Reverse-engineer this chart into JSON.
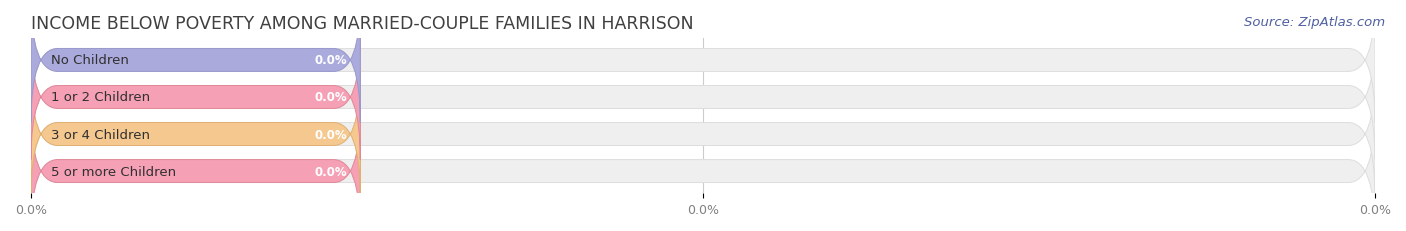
{
  "title": "INCOME BELOW POVERTY AMONG MARRIED-COUPLE FAMILIES IN HARRISON",
  "source": "Source: ZipAtlas.com",
  "categories": [
    "No Children",
    "1 or 2 Children",
    "3 or 4 Children",
    "5 or more Children"
  ],
  "values": [
    0.0,
    0.0,
    0.0,
    0.0
  ],
  "bar_colors": [
    "#aaaadd",
    "#f5a0b5",
    "#f5c890",
    "#f5a0b5"
  ],
  "bar_edge_colors": [
    "#9898cc",
    "#e08898",
    "#e0b070",
    "#e08898"
  ],
  "background_color": "#ffffff",
  "bar_bg_color": "#efefef",
  "bar_bg_edge_color": "#dddddd",
  "xlim": [
    0,
    100
  ],
  "ylim": [
    -0.6,
    3.6
  ],
  "title_fontsize": 12.5,
  "source_fontsize": 9.5,
  "label_fontsize": 9.5,
  "value_fontsize": 8.5,
  "tick_fontsize": 9,
  "bar_height": 0.62,
  "title_color": "#404040",
  "tick_label_color": "#808080",
  "source_color": "#5060a0",
  "colored_bar_width": 24.5,
  "xticks": [
    0.0,
    50.0,
    100.0
  ],
  "xtick_labels": [
    "0.0%",
    "0.0%",
    "0.0%"
  ]
}
